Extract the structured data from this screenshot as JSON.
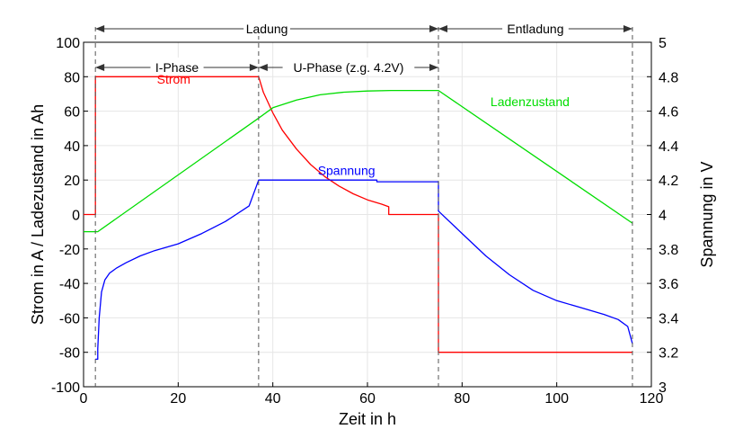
{
  "chart_data": {
    "type": "line",
    "xlabel": "Zeit in h",
    "ylabel_left": "Strom in A / Ladezustand in Ah",
    "ylabel_right": "Spannung in V",
    "xlim": [
      0,
      120
    ],
    "ylim_left": [
      -100,
      100
    ],
    "ylim_right": [
      3,
      5
    ],
    "xticks": [
      0,
      20,
      40,
      60,
      80,
      100,
      120
    ],
    "yticks_left": [
      -100,
      -80,
      -60,
      -40,
      -20,
      0,
      20,
      40,
      60,
      80,
      100
    ],
    "yticks_right": [
      "3",
      "3.2",
      "3.4",
      "3.6",
      "3.8",
      "4",
      "4.2",
      "4.4",
      "4.6",
      "4.8",
      "5"
    ],
    "grid": true,
    "series": [
      {
        "name": "Strom",
        "axis": "left",
        "color": "#ff0000",
        "label_at": [
          15.5,
          76
        ],
        "x": [
          0,
          2.5,
          2.5,
          37,
          38,
          40,
          42,
          45,
          48,
          51,
          54,
          57,
          60,
          63,
          64.5,
          64.5,
          75,
          75,
          116
        ],
        "y": [
          0,
          0,
          80,
          80,
          71,
          59,
          49,
          38,
          29,
          22,
          16.5,
          12,
          8.5,
          6,
          4.5,
          0,
          0,
          -80,
          -80
        ]
      },
      {
        "name": "Ladenzustand",
        "axis": "left",
        "color": "#00dd00",
        "label_at": [
          86,
          63
        ],
        "x": [
          0,
          3,
          37,
          40,
          45,
          50,
          55,
          60,
          65,
          70,
          75,
          116
        ],
        "y": [
          -10,
          -10,
          56,
          62,
          66.5,
          69.5,
          71,
          71.7,
          72,
          72,
          72,
          -5
        ]
      },
      {
        "name": "Spannung",
        "axis": "right",
        "color": "#0000ff",
        "label_at": [
          49.5,
          23
        ],
        "x": [
          2.5,
          3,
          3,
          3.3,
          3.8,
          4.5,
          5.5,
          7,
          9,
          12,
          15,
          20,
          25,
          30,
          35,
          37,
          50,
          62,
          62,
          75,
          75,
          80,
          85,
          90,
          95,
          100,
          105,
          110,
          113,
          115,
          116
        ],
        "y": [
          3.16,
          3.16,
          3.22,
          3.4,
          3.55,
          3.62,
          3.66,
          3.69,
          3.72,
          3.76,
          3.79,
          3.83,
          3.89,
          3.96,
          4.05,
          4.2,
          4.2,
          4.2,
          4.19,
          4.19,
          4.02,
          3.89,
          3.76,
          3.65,
          3.56,
          3.5,
          3.46,
          3.42,
          3.39,
          3.35,
          3.25
        ]
      }
    ],
    "annotations": [
      {
        "text": "Ladung",
        "x_from": 2.5,
        "x_to": 75,
        "level": 1
      },
      {
        "text": "Entladung",
        "x_from": 75,
        "x_to": 116,
        "level": 1
      },
      {
        "text": "I-Phase",
        "x_from": 2.5,
        "x_to": 37,
        "level": 2
      },
      {
        "text": "U-Phase (z.g. 4.2V)",
        "x_from": 37,
        "x_to": 75,
        "level": 2
      }
    ],
    "phase_boundaries": [
      2.5,
      37,
      75,
      116
    ]
  }
}
